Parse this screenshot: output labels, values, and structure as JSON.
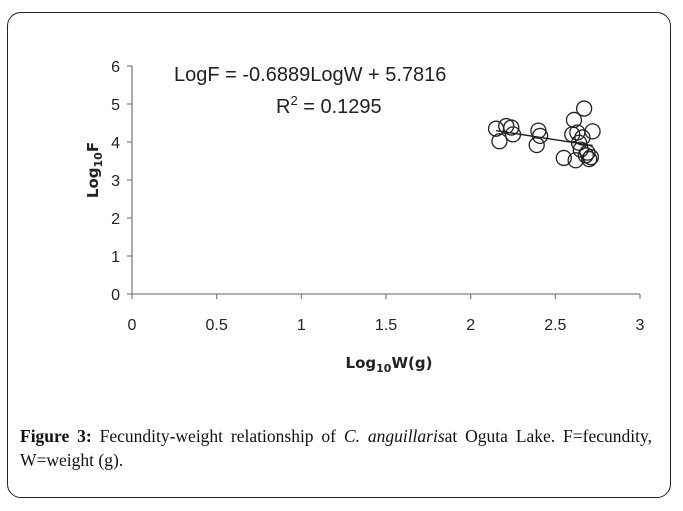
{
  "chart_data": {
    "type": "scatter",
    "xlabel": {
      "prefix": "Log",
      "sub": "10",
      "suffix": "W(g)"
    },
    "ylabel": {
      "prefix": "Log",
      "sub": "10",
      "suffix": "F"
    },
    "xlim": [
      0,
      3
    ],
    "ylim": [
      0,
      6
    ],
    "xticks": [
      "0",
      "0.5",
      "1",
      "1.5",
      "2",
      "2.5",
      "3"
    ],
    "yticks": [
      "0",
      "1",
      "2",
      "3",
      "4",
      "5",
      "6"
    ],
    "annotation_line1": "LogF = -0.6889LogW + 5.7816",
    "annotation_line2": {
      "prefix": "R",
      "sup": "2",
      "suffix": " = 0.1295"
    },
    "trendline": {
      "slope": -0.6889,
      "intercept": 5.7816,
      "x_range": [
        2.15,
        2.72
      ]
    },
    "points": [
      {
        "x": 2.15,
        "y": 4.35
      },
      {
        "x": 2.17,
        "y": 4.02
      },
      {
        "x": 2.21,
        "y": 4.42
      },
      {
        "x": 2.24,
        "y": 4.38
      },
      {
        "x": 2.25,
        "y": 4.2
      },
      {
        "x": 2.39,
        "y": 3.92
      },
      {
        "x": 2.4,
        "y": 4.3
      },
      {
        "x": 2.41,
        "y": 4.16
      },
      {
        "x": 2.55,
        "y": 3.58
      },
      {
        "x": 2.6,
        "y": 4.2
      },
      {
        "x": 2.61,
        "y": 4.58
      },
      {
        "x": 2.62,
        "y": 3.52
      },
      {
        "x": 2.63,
        "y": 4.25
      },
      {
        "x": 2.64,
        "y": 3.98
      },
      {
        "x": 2.65,
        "y": 3.8
      },
      {
        "x": 2.66,
        "y": 4.12
      },
      {
        "x": 2.67,
        "y": 4.88
      },
      {
        "x": 2.68,
        "y": 3.65
      },
      {
        "x": 2.69,
        "y": 3.72
      },
      {
        "x": 2.7,
        "y": 3.55
      },
      {
        "x": 2.72,
        "y": 4.28
      },
      {
        "x": 2.71,
        "y": 3.6
      }
    ]
  },
  "caption": {
    "label": "Figure 3:",
    "text1": " Fecundity-weight relationship of ",
    "species": "C. anguillaris",
    "text2": "at Oguta Lake. F=fecundity, W=weight (g)."
  }
}
